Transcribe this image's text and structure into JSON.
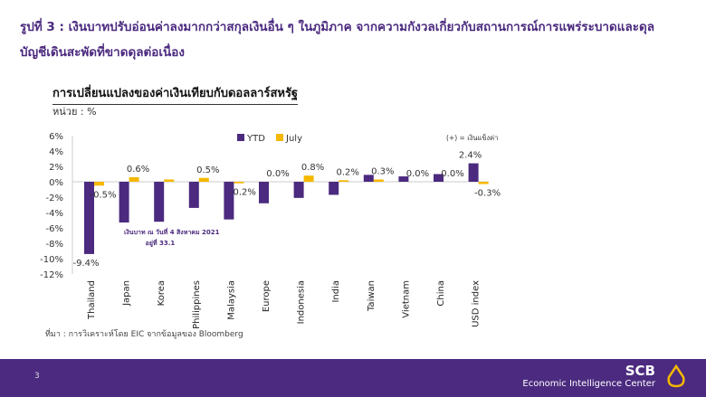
{
  "header": {
    "line1": "รูปที่ 3 : เงินบาทปรับอ่อนค่าลงมากกว่าสกุลเงินอื่น ๆ ในภูมิภาค จากความกังวลเกี่ยวกับสถานการณ์การแพร่ระบาดและดุล",
    "line2": "บัญชีเดินสะพัดที่ขาดดุลต่อเนื่อง"
  },
  "source": "ที่มา : การวิเคราะห์โดย EIC จากข้อมูลของ Bloomberg",
  "footer": {
    "page": "3",
    "brand": "SCB",
    "sub": "Economic Intelligence Center"
  },
  "colors": {
    "ytd": "#4b2a7f",
    "july": "#f5b800",
    "footer": "#4b2a7f"
  },
  "chart_data": {
    "type": "bar",
    "title": "การเปลี่ยนแปลงของค่าเงินเทียบกับดอลลาร์สหรัฐ",
    "unit_label": "หน่วย : %",
    "note": "(+) = เงินแข็งค่า",
    "annotation": [
      "เงินบาท ณ วันที่ 4 สิงหาคม 2021",
      "อยู่ที่ 33.1"
    ],
    "categories": [
      "Thailand",
      "Japan",
      "Korea",
      "Philippines",
      "Malaysia",
      "Europe",
      "Indonesia",
      "India",
      "Taiwan",
      "Vietnam",
      "China",
      "USD index"
    ],
    "series": [
      {
        "name": "YTD",
        "values": [
          -9.4,
          -5.3,
          -5.2,
          -3.4,
          -4.9,
          -2.8,
          -2.1,
          -1.7,
          0.9,
          0.7,
          1.0,
          2.4
        ],
        "labels": [
          "-9.4%",
          "",
          "",
          "",
          "",
          "",
          "",
          "",
          "",
          "",
          "",
          "2.4%"
        ]
      },
      {
        "name": "July",
        "values": [
          -0.5,
          0.6,
          0.3,
          0.5,
          -0.2,
          0.0,
          0.8,
          0.2,
          0.3,
          0.0,
          0.0,
          -0.3
        ],
        "labels": [
          "-0.5%",
          "0.6%",
          "",
          "0.5%",
          "-0.2%",
          "0.0%",
          "0.8%",
          "0.2%",
          "0.3%",
          "0.0%",
          "0.0%",
          "-0.3%"
        ]
      }
    ],
    "yticks": [
      "6%",
      "4%",
      "2%",
      "0%",
      "-2%",
      "-4%",
      "-6%",
      "-8%",
      "-10%",
      "-12%"
    ],
    "ylim": [
      -12,
      6
    ],
    "legend": "top-center"
  }
}
